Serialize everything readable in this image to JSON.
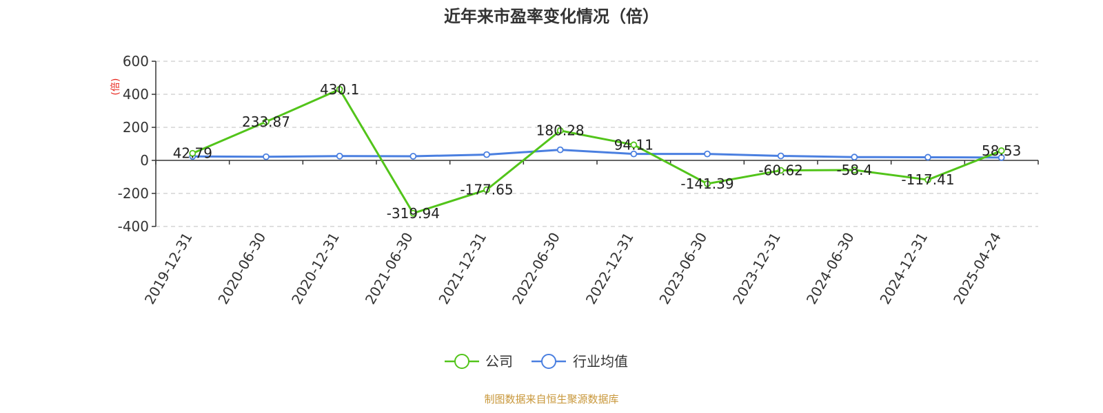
{
  "title": "近年来市盈率变化情况（倍）",
  "source": "制图数据来自恒生聚源数据库",
  "chart_data": {
    "type": "line",
    "title": "近年来市盈率变化情况（倍）",
    "ylabel": "(倍)",
    "xlabel": "",
    "categories": [
      "2019-12-31",
      "2020-06-30",
      "2020-12-31",
      "2021-06-30",
      "2021-12-31",
      "2022-06-30",
      "2022-12-31",
      "2023-06-30",
      "2023-12-31",
      "2024-06-30",
      "2024-12-31",
      "2025-04-24"
    ],
    "ylim": [
      -400,
      600
    ],
    "yticks": [
      600,
      400,
      200,
      0,
      -200,
      -400
    ],
    "grid": true,
    "legend_position": "bottom",
    "series": [
      {
        "name": "公司",
        "color": "#52c41a",
        "values": [
          42.79,
          233.87,
          430.1,
          -319.94,
          -177.65,
          180.28,
          94.11,
          -141.39,
          -60.62,
          -58.4,
          -117.41,
          58.53
        ],
        "labels": [
          "42.79",
          "233.87",
          "430.1",
          "-319.94",
          "-177.65",
          "180.28",
          "94.11",
          "-141.39",
          "-60.62",
          "-58.4",
          "-117.41",
          "58.53"
        ]
      },
      {
        "name": "行业均值",
        "color": "#4a7fe0",
        "values": [
          24,
          22,
          26,
          25,
          35,
          64,
          39,
          39,
          27,
          20,
          19,
          17
        ]
      }
    ]
  }
}
